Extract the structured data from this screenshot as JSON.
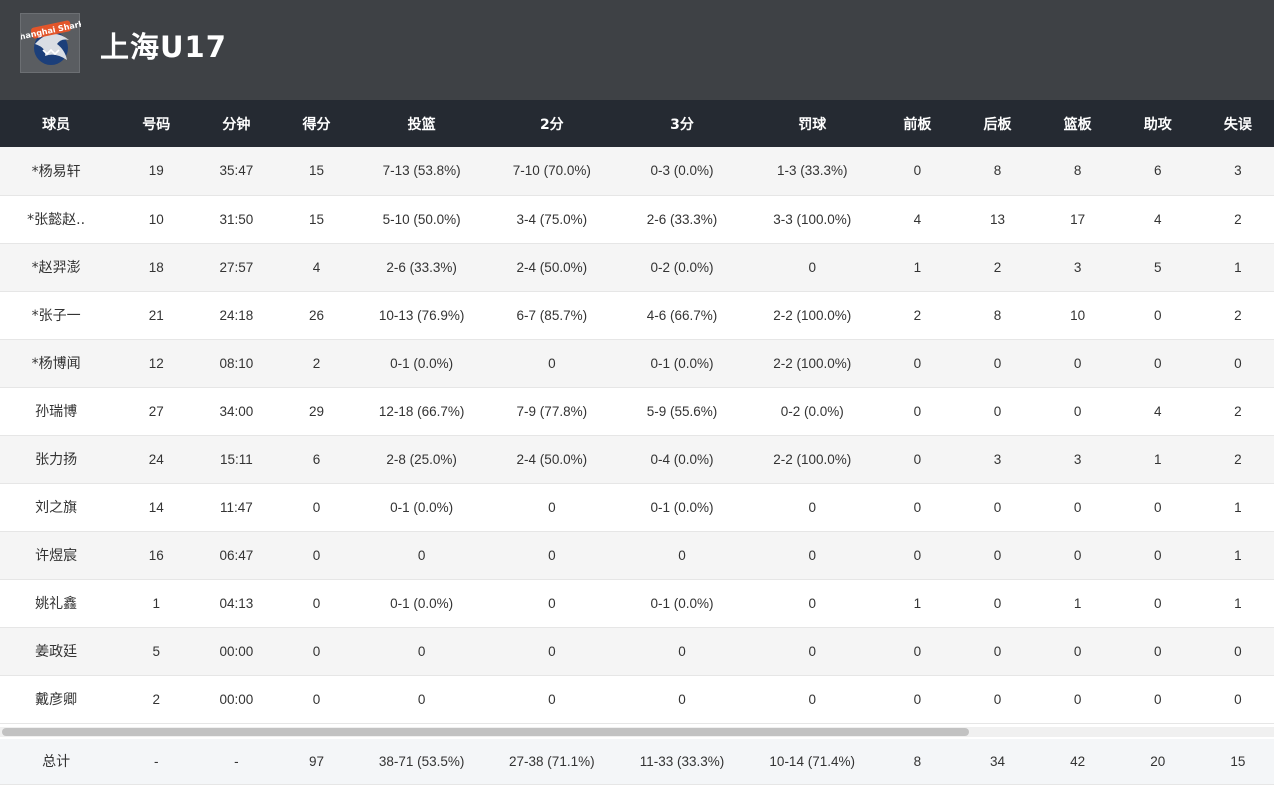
{
  "team": {
    "name": "上海U17",
    "logo": "Shanghai Sharks"
  },
  "columns": [
    "球员",
    "号码",
    "分钟",
    "得分",
    "投篮",
    "2分",
    "3分",
    "罚球",
    "前板",
    "后板",
    "篮板",
    "助攻",
    "失误"
  ],
  "players": [
    [
      "*杨易轩",
      "19",
      "35:47",
      "15",
      "7-13 (53.8%)",
      "7-10 (70.0%)",
      "0-3 (0.0%)",
      "1-3 (33.3%)",
      "0",
      "8",
      "8",
      "6",
      "3"
    ],
    [
      "*张懿赵..",
      "10",
      "31:50",
      "15",
      "5-10 (50.0%)",
      "3-4 (75.0%)",
      "2-6 (33.3%)",
      "3-3 (100.0%)",
      "4",
      "13",
      "17",
      "4",
      "2"
    ],
    [
      "*赵羿澎",
      "18",
      "27:57",
      "4",
      "2-6 (33.3%)",
      "2-4 (50.0%)",
      "0-2 (0.0%)",
      "0",
      "1",
      "2",
      "3",
      "5",
      "1"
    ],
    [
      "*张子一",
      "21",
      "24:18",
      "26",
      "10-13 (76.9%)",
      "6-7 (85.7%)",
      "4-6 (66.7%)",
      "2-2 (100.0%)",
      "2",
      "8",
      "10",
      "0",
      "2"
    ],
    [
      "*杨博闻",
      "12",
      "08:10",
      "2",
      "0-1 (0.0%)",
      "0",
      "0-1 (0.0%)",
      "2-2 (100.0%)",
      "0",
      "0",
      "0",
      "0",
      "0"
    ],
    [
      "孙瑞博",
      "27",
      "34:00",
      "29",
      "12-18 (66.7%)",
      "7-9 (77.8%)",
      "5-9 (55.6%)",
      "0-2 (0.0%)",
      "0",
      "0",
      "0",
      "4",
      "2"
    ],
    [
      "张力扬",
      "24",
      "15:11",
      "6",
      "2-8 (25.0%)",
      "2-4 (50.0%)",
      "0-4 (0.0%)",
      "2-2 (100.0%)",
      "0",
      "3",
      "3",
      "1",
      "2"
    ],
    [
      "刘之旗",
      "14",
      "11:47",
      "0",
      "0-1 (0.0%)",
      "0",
      "0-1 (0.0%)",
      "0",
      "0",
      "0",
      "0",
      "0",
      "1"
    ],
    [
      "许煜宸",
      "16",
      "06:47",
      "0",
      "0",
      "0",
      "0",
      "0",
      "0",
      "0",
      "0",
      "0",
      "1"
    ],
    [
      "姚礼鑫",
      "1",
      "04:13",
      "0",
      "0-1 (0.0%)",
      "0",
      "0-1 (0.0%)",
      "0",
      "1",
      "0",
      "1",
      "0",
      "1"
    ],
    [
      "姜政廷",
      "5",
      "00:00",
      "0",
      "0",
      "0",
      "0",
      "0",
      "0",
      "0",
      "0",
      "0",
      "0"
    ],
    [
      "戴彦卿",
      "2",
      "00:00",
      "0",
      "0",
      "0",
      "0",
      "0",
      "0",
      "0",
      "0",
      "0",
      "0"
    ]
  ],
  "totals": [
    "总计",
    "-",
    "-",
    "97",
    "38-71 (53.5%)",
    "27-38 (71.1%)",
    "11-33 (33.3%)",
    "10-14 (71.4%)",
    "8",
    "34",
    "42",
    "20",
    "15"
  ]
}
